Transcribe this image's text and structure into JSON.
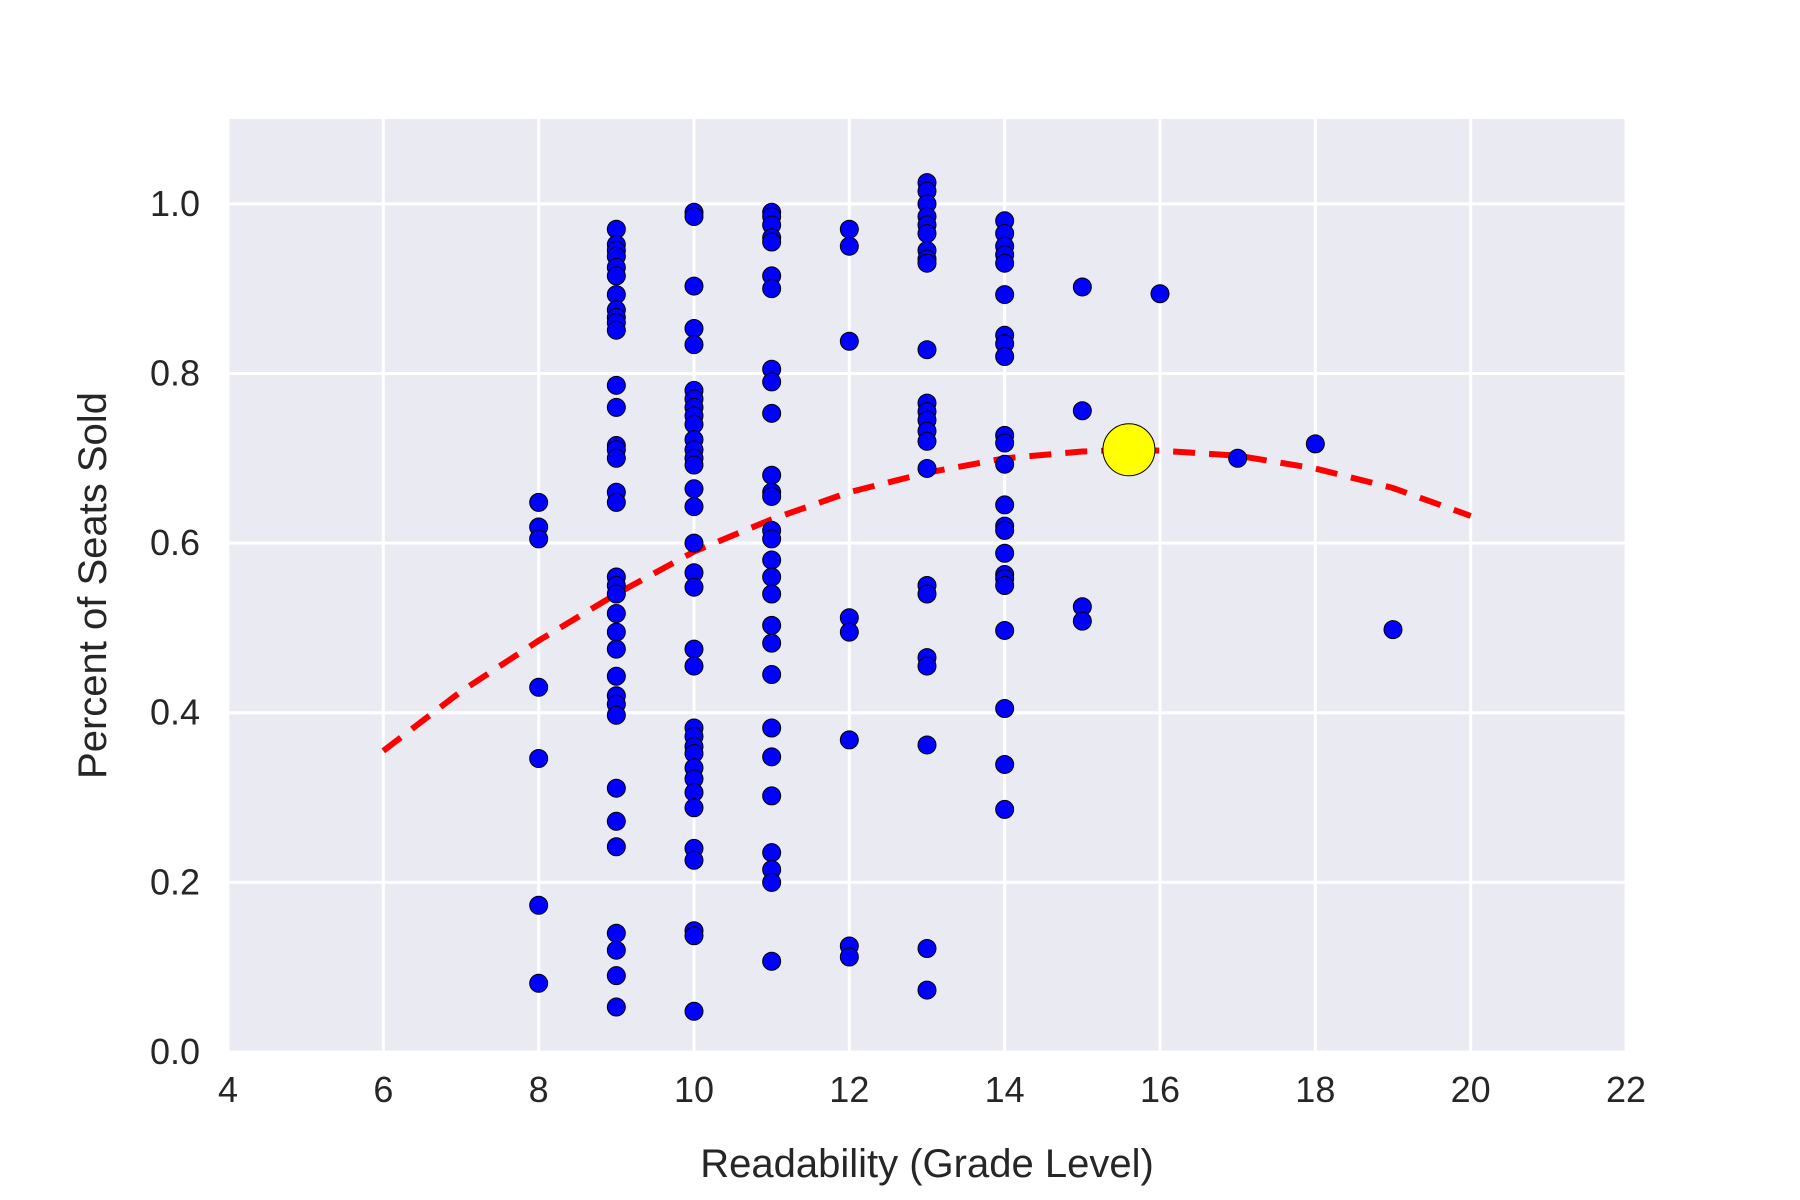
{
  "chart_data": {
    "type": "scatter",
    "title": "",
    "xlabel": "Readability (Grade Level)",
    "ylabel": "Percent of Seats Sold",
    "xlim": [
      4,
      22
    ],
    "ylim": [
      0.0,
      1.1
    ],
    "x_ticks": [
      4,
      6,
      8,
      10,
      12,
      14,
      16,
      18,
      20,
      22
    ],
    "y_ticks": [
      0.0,
      0.2,
      0.4,
      0.6,
      0.8,
      1.0
    ],
    "x_tick_labels": [
      "4",
      "6",
      "8",
      "10",
      "12",
      "14",
      "16",
      "18",
      "20",
      "22"
    ],
    "y_tick_labels": [
      "0.0",
      "0.2",
      "0.4",
      "0.6",
      "0.8",
      "1.0"
    ],
    "grid": true,
    "legend": "none",
    "colors": {
      "background": "#eaeaf2",
      "grid": "#ffffff",
      "points": "#0000ff",
      "point_edge": "#000000",
      "fit_line": "#ff0000",
      "highlight": "#ffff00"
    },
    "series": [
      {
        "marker": "circle",
        "points": [
          [
            8,
            0.648
          ],
          [
            8,
            0.619
          ],
          [
            8,
            0.605
          ],
          [
            8,
            0.43
          ],
          [
            8,
            0.346
          ],
          [
            8,
            0.173
          ],
          [
            8,
            0.081
          ],
          [
            9,
            0.97
          ],
          [
            9,
            0.952
          ],
          [
            9,
            0.945
          ],
          [
            9,
            0.938
          ],
          [
            9,
            0.925
          ],
          [
            9,
            0.915
          ],
          [
            9,
            0.893
          ],
          [
            9,
            0.875
          ],
          [
            9,
            0.866
          ],
          [
            9,
            0.86
          ],
          [
            9,
            0.851
          ],
          [
            9,
            0.786
          ],
          [
            9,
            0.76
          ],
          [
            9,
            0.715
          ],
          [
            9,
            0.71
          ],
          [
            9,
            0.7
          ],
          [
            9,
            0.66
          ],
          [
            9,
            0.648
          ],
          [
            9,
            0.56
          ],
          [
            9,
            0.55
          ],
          [
            9,
            0.54
          ],
          [
            9,
            0.517
          ],
          [
            9,
            0.495
          ],
          [
            9,
            0.475
          ],
          [
            9,
            0.443
          ],
          [
            9,
            0.42
          ],
          [
            9,
            0.41
          ],
          [
            9,
            0.397
          ],
          [
            9,
            0.311
          ],
          [
            9,
            0.272
          ],
          [
            9,
            0.242
          ],
          [
            9,
            0.14
          ],
          [
            9,
            0.12
          ],
          [
            9,
            0.09
          ],
          [
            9,
            0.053
          ],
          [
            10,
            0.99
          ],
          [
            10,
            0.985
          ],
          [
            10,
            0.903
          ],
          [
            10,
            0.853
          ],
          [
            10,
            0.834
          ],
          [
            10,
            0.78
          ],
          [
            10,
            0.77
          ],
          [
            10,
            0.76
          ],
          [
            10,
            0.75
          ],
          [
            10,
            0.74
          ],
          [
            10,
            0.722
          ],
          [
            10,
            0.71
          ],
          [
            10,
            0.7
          ],
          [
            10,
            0.692
          ],
          [
            10,
            0.664
          ],
          [
            10,
            0.643
          ],
          [
            10,
            0.6
          ],
          [
            10,
            0.565
          ],
          [
            10,
            0.548
          ],
          [
            10,
            0.475
          ],
          [
            10,
            0.455
          ],
          [
            10,
            0.382
          ],
          [
            10,
            0.372
          ],
          [
            10,
            0.36
          ],
          [
            10,
            0.352
          ],
          [
            10,
            0.335
          ],
          [
            10,
            0.322
          ],
          [
            10,
            0.306
          ],
          [
            10,
            0.288
          ],
          [
            10,
            0.24
          ],
          [
            10,
            0.226
          ],
          [
            10,
            0.143
          ],
          [
            10,
            0.137
          ],
          [
            10,
            0.048
          ],
          [
            11,
            0.99
          ],
          [
            11,
            0.985
          ],
          [
            11,
            0.975
          ],
          [
            11,
            0.96
          ],
          [
            11,
            0.955
          ],
          [
            11,
            0.915
          ],
          [
            11,
            0.9
          ],
          [
            11,
            0.805
          ],
          [
            11,
            0.79
          ],
          [
            11,
            0.753
          ],
          [
            11,
            0.68
          ],
          [
            11,
            0.66
          ],
          [
            11,
            0.655
          ],
          [
            11,
            0.615
          ],
          [
            11,
            0.605
          ],
          [
            11,
            0.58
          ],
          [
            11,
            0.56
          ],
          [
            11,
            0.54
          ],
          [
            11,
            0.503
          ],
          [
            11,
            0.482
          ],
          [
            11,
            0.445
          ],
          [
            11,
            0.382
          ],
          [
            11,
            0.348
          ],
          [
            11,
            0.302
          ],
          [
            11,
            0.235
          ],
          [
            11,
            0.215
          ],
          [
            11,
            0.2
          ],
          [
            11,
            0.107
          ],
          [
            12,
            0.97
          ],
          [
            12,
            0.95
          ],
          [
            12,
            0.838
          ],
          [
            12,
            0.512
          ],
          [
            12,
            0.495
          ],
          [
            12,
            0.368
          ],
          [
            12,
            0.125
          ],
          [
            12,
            0.112
          ],
          [
            13,
            1.025
          ],
          [
            13,
            1.015
          ],
          [
            13,
            1.0
          ],
          [
            13,
            0.985
          ],
          [
            13,
            0.975
          ],
          [
            13,
            0.965
          ],
          [
            13,
            0.945
          ],
          [
            13,
            0.935
          ],
          [
            13,
            0.93
          ],
          [
            13,
            0.828
          ],
          [
            13,
            0.765
          ],
          [
            13,
            0.755
          ],
          [
            13,
            0.745
          ],
          [
            13,
            0.732
          ],
          [
            13,
            0.72
          ],
          [
            13,
            0.688
          ],
          [
            13,
            0.55
          ],
          [
            13,
            0.54
          ],
          [
            13,
            0.465
          ],
          [
            13,
            0.455
          ],
          [
            13,
            0.362
          ],
          [
            13,
            0.122
          ],
          [
            13,
            0.073
          ],
          [
            14,
            0.98
          ],
          [
            14,
            0.965
          ],
          [
            14,
            0.95
          ],
          [
            14,
            0.94
          ],
          [
            14,
            0.93
          ],
          [
            14,
            0.893
          ],
          [
            14,
            0.845
          ],
          [
            14,
            0.835
          ],
          [
            14,
            0.82
          ],
          [
            14,
            0.727
          ],
          [
            14,
            0.718
          ],
          [
            14,
            0.693
          ],
          [
            14,
            0.645
          ],
          [
            14,
            0.62
          ],
          [
            14,
            0.615
          ],
          [
            14,
            0.588
          ],
          [
            14,
            0.563
          ],
          [
            14,
            0.558
          ],
          [
            14,
            0.55
          ],
          [
            14,
            0.497
          ],
          [
            14,
            0.405
          ],
          [
            14,
            0.339
          ],
          [
            14,
            0.286
          ],
          [
            15,
            0.902
          ],
          [
            15,
            0.756
          ],
          [
            15,
            0.525
          ],
          [
            15,
            0.508
          ],
          [
            16,
            0.894
          ],
          [
            17,
            0.7
          ],
          [
            18,
            0.717
          ],
          [
            19,
            0.498
          ]
        ]
      }
    ],
    "fit_curve": {
      "style": "dashed",
      "x": [
        6,
        7,
        8,
        9,
        10,
        11,
        12,
        13,
        14,
        15,
        15.6,
        16,
        17,
        18,
        19,
        20
      ],
      "y": [
        0.355,
        0.425,
        0.485,
        0.54,
        0.59,
        0.628,
        0.66,
        0.683,
        0.7,
        0.708,
        0.71,
        0.709,
        0.703,
        0.688,
        0.665,
        0.632
      ]
    },
    "highlight_point": {
      "x": 15.6,
      "y": 0.71
    }
  }
}
